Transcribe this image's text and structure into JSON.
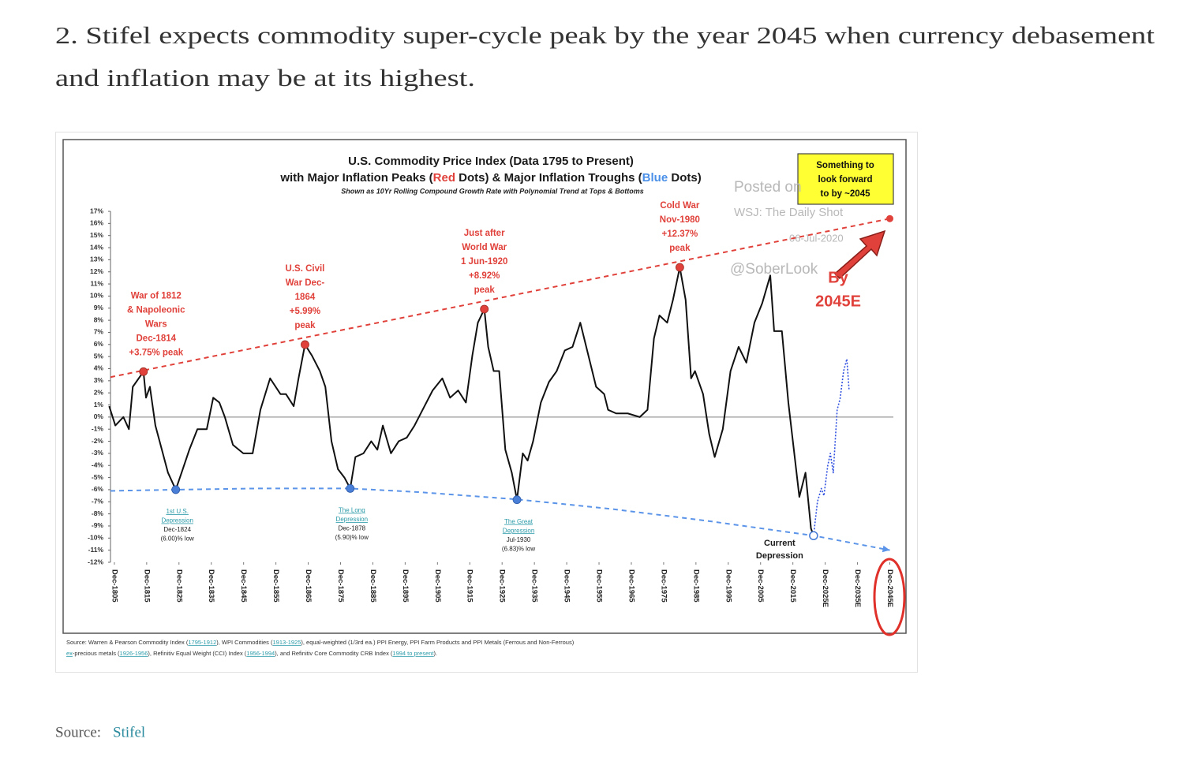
{
  "heading": [
    "2. Stifel expects commodity super-cycle peak by the year 2045 when currency debasement",
    "and inflation may be at its highest."
  ],
  "source": {
    "label": "Source:",
    "link": "Stifel"
  },
  "chart_data": {
    "type": "line",
    "title": "U.S. Commodity Price Index (Data 1795 to Present)",
    "title_line2": [
      {
        "text": "with Major Inflation Peaks (",
        "color": "#1a1a1a"
      },
      {
        "text": "Red",
        "color": "#e0413a"
      },
      {
        "text": " Dots) & Major Inflation Troughs (",
        "color": "#1a1a1a"
      },
      {
        "text": "Blue",
        "color": "#4a8fe8"
      },
      {
        "text": " Dots)",
        "color": "#1a1a1a"
      }
    ],
    "subtitle": "Shown as 10Yr Rolling Compound Growth Rate with Polynomial Trend  at Tops & Bottoms",
    "xlim": [
      1804.7,
      2047
    ],
    "ylim": [
      -12,
      17
    ],
    "xticks": [
      {
        "value": 1805.9,
        "label": "Dec-1805"
      },
      {
        "value": 1815.9,
        "label": "Dec-1815"
      },
      {
        "value": 1825.9,
        "label": "Dec-1825"
      },
      {
        "value": 1835.9,
        "label": "Dec-1835"
      },
      {
        "value": 1845.9,
        "label": "Dec-1845"
      },
      {
        "value": 1855.9,
        "label": "Dec-1855"
      },
      {
        "value": 1865.9,
        "label": "Dec-1865"
      },
      {
        "value": 1875.9,
        "label": "Dec-1875"
      },
      {
        "value": 1885.9,
        "label": "Dec-1885"
      },
      {
        "value": 1895.9,
        "label": "Dec-1895"
      },
      {
        "value": 1905.9,
        "label": "Dec-1905"
      },
      {
        "value": 1915.9,
        "label": "Dec-1915"
      },
      {
        "value": 1925.9,
        "label": "Dec-1925"
      },
      {
        "value": 1935.9,
        "label": "Dec-1935"
      },
      {
        "value": 1945.9,
        "label": "Dec-1945"
      },
      {
        "value": 1955.9,
        "label": "Dec-1955"
      },
      {
        "value": 1965.9,
        "label": "Dec-1965"
      },
      {
        "value": 1975.9,
        "label": "Dec-1975"
      },
      {
        "value": 1985.9,
        "label": "Dec-1985"
      },
      {
        "value": 1995.9,
        "label": "Dec-1995"
      },
      {
        "value": 2005.9,
        "label": "Dec-2005"
      },
      {
        "value": 2015.9,
        "label": "Dec-2015"
      },
      {
        "value": 2025.9,
        "label": "Dec-2025E"
      },
      {
        "value": 2035.9,
        "label": "Dec-2035E"
      },
      {
        "value": 2045.9,
        "label": "Dec-2045E"
      }
    ],
    "yticks": [
      {
        "value": 17,
        "label": "17%"
      },
      {
        "value": 16,
        "label": "16%"
      },
      {
        "value": 15,
        "label": "15%"
      },
      {
        "value": 14,
        "label": "14%"
      },
      {
        "value": 13,
        "label": "13%"
      },
      {
        "value": 12,
        "label": "12%"
      },
      {
        "value": 11,
        "label": "11%"
      },
      {
        "value": 10,
        "label": "10%"
      },
      {
        "value": 9,
        "label": "9%"
      },
      {
        "value": 8,
        "label": "8%"
      },
      {
        "value": 7,
        "label": "7%"
      },
      {
        "value": 6,
        "label": "6%"
      },
      {
        "value": 5,
        "label": "5%"
      },
      {
        "value": 4,
        "label": "4%"
      },
      {
        "value": 3,
        "label": "3%"
      },
      {
        "value": 2,
        "label": "2%"
      },
      {
        "value": 1,
        "label": "1%"
      },
      {
        "value": 0,
        "label": "0%"
      },
      {
        "value": -1,
        "label": "-1%"
      },
      {
        "value": -2,
        "label": "-2%"
      },
      {
        "value": -3,
        "label": "-3%"
      },
      {
        "value": -4,
        "label": "-4%"
      },
      {
        "value": -5,
        "label": "-5%"
      },
      {
        "value": -6,
        "label": "-6%"
      },
      {
        "value": -7,
        "label": "-7%"
      },
      {
        "value": -8,
        "label": "-8%"
      },
      {
        "value": -9,
        "label": "-9%"
      },
      {
        "value": -10,
        "label": "-10%"
      },
      {
        "value": -11,
        "label": "-11%"
      },
      {
        "value": -12,
        "label": "-12%"
      }
    ],
    "zero_line": true,
    "series": [
      {
        "color": "#111111",
        "style": "solid",
        "x": [
          1804.3,
          1806.2,
          1808.7,
          1810.4,
          1811.6,
          1814.9,
          1815.7,
          1816.9,
          1818.6,
          1820.6,
          1822.5,
          1824.9,
          1826.7,
          1829.1,
          1831.6,
          1834.5,
          1836.5,
          1838.4,
          1840.1,
          1842.6,
          1845.8,
          1848.7,
          1851.1,
          1854.1,
          1857.3,
          1859,
          1861.4,
          1862.9,
          1864.9,
          1867,
          1869.5,
          1871.2,
          1873.1,
          1875.1,
          1877.1,
          1878.9,
          1880.5,
          1883,
          1885.4,
          1887.3,
          1889,
          1891.5,
          1893.9,
          1896.4,
          1898.8,
          1901.3,
          1904.4,
          1907.4,
          1909.8,
          1912.3,
          1914.7,
          1916.7,
          1918.4,
          1920.4,
          1921.6,
          1923.3,
          1925,
          1926.9,
          1928.9,
          1930.5,
          1932.3,
          1933.8,
          1935.5,
          1937.9,
          1940.4,
          1942.8,
          1945.3,
          1947.7,
          1950.1,
          1952.6,
          1955,
          1957.5,
          1958.7,
          1961.2,
          1964.8,
          1968.5,
          1970.9,
          1972.9,
          1974.6,
          1977,
          1978.8,
          1980.9,
          1982.7,
          1984.4,
          1985.6,
          1988.1,
          1990,
          1991.7,
          1994.2,
          1996.6,
          1999.1,
          2001.5,
          2004,
          2006.4,
          2008.9,
          2010.1,
          2012.5,
          2014.5,
          2016.2,
          2017.9,
          2019.8,
          2021.5,
          2022.3
        ],
        "values": [
          0.9,
          -0.7,
          0,
          -1,
          2.5,
          3.75,
          1.6,
          2.5,
          -0.7,
          -2.7,
          -4.6,
          -6.0,
          -4.6,
          -2.7,
          -1,
          -1,
          1.6,
          1.2,
          0,
          -2.3,
          -3,
          -3,
          0.6,
          3.2,
          1.9,
          1.9,
          0.9,
          3.2,
          5.99,
          5.1,
          3.8,
          2.5,
          -2,
          -4.3,
          -5,
          -5.9,
          -3.3,
          -3,
          -2,
          -2.7,
          -0.7,
          -3,
          -2,
          -1.7,
          -0.7,
          0.6,
          2.2,
          3.2,
          1.6,
          2.2,
          1.2,
          5.1,
          7.8,
          8.92,
          5.8,
          3.8,
          3.8,
          -2.7,
          -4.6,
          -6.83,
          -3,
          -3.6,
          -2,
          1.2,
          2.9,
          3.8,
          5.5,
          5.8,
          7.8,
          5.1,
          2.5,
          1.9,
          0.6,
          0.3,
          0.3,
          0,
          0.6,
          6.5,
          8.4,
          7.8,
          9.7,
          12.37,
          9.7,
          3.2,
          3.8,
          1.9,
          -1.4,
          -3.3,
          -1,
          3.8,
          5.8,
          4.5,
          7.8,
          9.4,
          11.7,
          7.1,
          7.1,
          1.2,
          -2.7,
          -6.6,
          -4.6,
          -9.2,
          -9.8
        ]
      },
      {
        "color": "#3050e0",
        "style": "dotted",
        "x": [
          2022.3,
          2023.5,
          2024.7,
          2025.5,
          2026.7,
          2027.5,
          2028.4,
          2029.6,
          2030.5,
          2031.6,
          2032.6,
          2033.3
        ],
        "values": [
          -9.8,
          -7,
          -5.9,
          -6.5,
          -4,
          -3,
          -4.6,
          0.6,
          1.5,
          3.8,
          4.8,
          2.2
        ]
      }
    ],
    "peak_trend": {
      "color": "#e0413a",
      "x": [
        1804.7,
        2045.9
      ],
      "values": [
        3.3,
        16.4
      ]
    },
    "trough_trend": {
      "color": "#5b94e8",
      "x": [
        1804.7,
        1824.9,
        1850,
        1878.9,
        1900,
        1930.5,
        1960,
        1990,
        2022.3,
        2045.9
      ],
      "values": [
        -6.1,
        -6.0,
        -5.9,
        -5.9,
        -6.2,
        -6.8,
        -7.6,
        -8.6,
        -9.8,
        -11.0
      ]
    },
    "peaks": [
      {
        "x": 1814.9,
        "value": 3.75,
        "lines": [
          "War of 1812",
          "& Napoleonic",
          "Wars",
          "Dec-1814",
          "+3.75% peak"
        ]
      },
      {
        "x": 1864.9,
        "value": 5.99,
        "lines": [
          "U.S. Civil",
          "War Dec-",
          "1864",
          "+5.99%",
          "peak"
        ]
      },
      {
        "x": 1920.4,
        "value": 8.92,
        "lines": [
          "Just after",
          "World War",
          "1 Jun-1920",
          "+8.92%",
          "peak"
        ]
      },
      {
        "x": 1980.9,
        "value": 12.37,
        "lines": [
          "Cold War",
          "Nov-1980",
          "+12.37%",
          "peak"
        ]
      }
    ],
    "peak_color": "#e0413a",
    "troughs": [
      {
        "x": 1824.9,
        "value": -6.0,
        "name": [
          "1st U.S.",
          "Depression"
        ],
        "lines": [
          "Dec-1824",
          "(6.00)% low"
        ]
      },
      {
        "x": 1878.9,
        "value": -5.9,
        "name": [
          "The Long",
          "Depression"
        ],
        "lines": [
          "Dec-1878",
          "(5.90)% low"
        ]
      },
      {
        "x": 1930.5,
        "value": -6.83,
        "name": [
          "The Great",
          "Depression"
        ],
        "lines": [
          "Jul-1930",
          "(6.83)% low"
        ]
      }
    ],
    "trough_color": "#4a7fd8",
    "current_trough": {
      "x": 2022.3,
      "value": -9.8,
      "lines": [
        "Current",
        "Depression"
      ]
    },
    "callout": [
      "Something to",
      "look forward",
      "to by ~2045"
    ],
    "by_label": [
      "By",
      "2045E"
    ],
    "watermark": [
      "Posted on",
      "WSJ: The Daily Shot",
      "06-Jul-2020",
      "@SoberLook"
    ],
    "source_note": [
      [
        {
          "text": "Source: Warren & Pearson Commodity Index ("
        },
        {
          "text": "1795-1912",
          "link": true
        },
        {
          "text": "), WPI Commodities ("
        },
        {
          "text": "1913-1925",
          "link": true
        },
        {
          "text": "), equal-weighted (1/3rd ea.) PPI Energy, PPI Farm Products and PPI Metals (Ferrous and Non-Ferrous)"
        }
      ],
      [
        {
          "text": "ex",
          "link": true
        },
        {
          "text": "-precious metals ("
        },
        {
          "text": "1926-1956",
          "link": true
        },
        {
          "text": "), Refinitiv Equal Weight (CCI) Index ("
        },
        {
          "text": "1956-1994",
          "link": true
        },
        {
          "text": "), and Refinitiv Core Commodity CRB Index ("
        },
        {
          "text": "1994 to present",
          "link": true
        },
        {
          "text": ")."
        }
      ]
    ]
  }
}
